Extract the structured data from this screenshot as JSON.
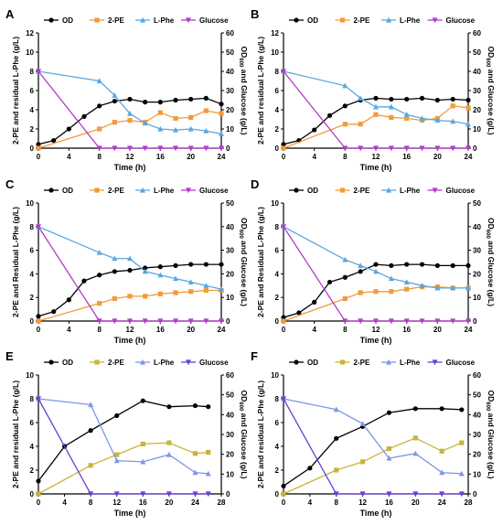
{
  "chart_data": [
    {
      "panel": "A",
      "type": "line",
      "xlabel": "Time (h)",
      "ylabel_left": "2-PE and residual L-Phe (g/L)",
      "ylabel_right": "OD600 and Glucose (g/L)",
      "xlim": [
        0,
        24
      ],
      "xticks": [
        0,
        4,
        8,
        12,
        16,
        20,
        24
      ],
      "ylim_left": [
        0,
        12
      ],
      "yticks_left": [
        0,
        2,
        4,
        6,
        8,
        10,
        12
      ],
      "ylim_right": [
        0,
        60
      ],
      "yticks_right": [
        0,
        10,
        20,
        30,
        40,
        50,
        60
      ],
      "legend": "top",
      "series": [
        {
          "name": "OD",
          "axis": "right",
          "color": "#000000",
          "marker": "circle",
          "x": [
            0,
            2,
            4,
            6,
            8,
            10,
            12,
            14,
            16,
            18,
            20,
            22,
            24
          ],
          "y": [
            2,
            4,
            10,
            16.5,
            22,
            24.5,
            25.5,
            24,
            24,
            25,
            25.5,
            26,
            23
          ]
        },
        {
          "name": "2-PE",
          "axis": "left",
          "color": "#f29a3c",
          "marker": "square",
          "x": [
            0,
            8,
            10,
            12,
            14,
            16,
            18,
            20,
            22,
            24
          ],
          "y": [
            0,
            2,
            2.7,
            2.9,
            2.7,
            3.7,
            3.1,
            3.2,
            3.9,
            3.6
          ]
        },
        {
          "name": "L-Phe",
          "axis": "left",
          "color": "#5aa7e0",
          "marker": "triangle",
          "x": [
            0,
            8,
            10,
            12,
            14,
            16,
            18,
            20,
            22,
            24
          ],
          "y": [
            8,
            7,
            5.5,
            3.6,
            2.6,
            2.0,
            1.9,
            2.0,
            1.8,
            1.5
          ]
        },
        {
          "name": "Glucose",
          "axis": "right",
          "color": "#b23acb",
          "marker": "triangle-down",
          "x": [
            0,
            8,
            10,
            12,
            14,
            16,
            18,
            20,
            22,
            24
          ],
          "y": [
            40,
            0,
            0,
            0,
            0,
            0,
            0,
            0,
            0,
            0
          ]
        }
      ]
    },
    {
      "panel": "B",
      "type": "line",
      "xlabel": "Time (h)",
      "ylabel_left": "2-PE and residual L-Phe (g/L)",
      "ylabel_right": "OD600 and Glucose (g/L)",
      "xlim": [
        0,
        24
      ],
      "xticks": [
        0,
        4,
        8,
        12,
        16,
        20,
        24
      ],
      "ylim_left": [
        0,
        12
      ],
      "yticks_left": [
        0,
        2,
        4,
        6,
        8,
        10,
        12
      ],
      "ylim_right": [
        0,
        60
      ],
      "yticks_right": [
        0,
        10,
        20,
        30,
        40,
        50,
        60
      ],
      "legend": "top",
      "series": [
        {
          "name": "OD",
          "axis": "right",
          "color": "#000000",
          "marker": "circle",
          "x": [
            0,
            2,
            4,
            6,
            8,
            10,
            12,
            14,
            16,
            18,
            20,
            22,
            24
          ],
          "y": [
            2,
            4,
            9.5,
            17,
            22,
            25,
            26,
            25.5,
            25.5,
            26,
            25,
            25.5,
            25
          ]
        },
        {
          "name": "2-PE",
          "axis": "left",
          "color": "#f29a3c",
          "marker": "square",
          "x": [
            0,
            8,
            10,
            12,
            14,
            16,
            18,
            20,
            22,
            24
          ],
          "y": [
            0,
            2.5,
            2.5,
            3.5,
            3.2,
            3.1,
            2.9,
            3.1,
            4.4,
            4.2
          ]
        },
        {
          "name": "L-Phe",
          "axis": "left",
          "color": "#5aa7e0",
          "marker": "triangle",
          "x": [
            0,
            8,
            10,
            12,
            14,
            16,
            18,
            20,
            22,
            24
          ],
          "y": [
            8,
            6.5,
            5.2,
            4.3,
            4.3,
            3.5,
            3.1,
            2.9,
            2.8,
            2.5
          ]
        },
        {
          "name": "Glucose",
          "axis": "right",
          "color": "#b23acb",
          "marker": "triangle-down",
          "x": [
            0,
            8,
            10,
            12,
            14,
            16,
            18,
            20,
            22,
            24
          ],
          "y": [
            40,
            0,
            0,
            0,
            0,
            0,
            0,
            0,
            0,
            0
          ]
        }
      ]
    },
    {
      "panel": "C",
      "type": "line",
      "xlabel": "Time (h)",
      "ylabel_left": "2-PE and Residual L-Phe (g/L)",
      "ylabel_right": "OD600 and Glucose (g/L)",
      "xlim": [
        0,
        24
      ],
      "xticks": [
        0,
        4,
        8,
        12,
        16,
        20,
        24
      ],
      "ylim_left": [
        0,
        10
      ],
      "yticks_left": [
        0,
        2,
        4,
        6,
        8,
        10
      ],
      "ylim_right": [
        0,
        50
      ],
      "yticks_right": [
        0,
        10,
        20,
        30,
        40,
        50
      ],
      "legend": "top",
      "series": [
        {
          "name": "OD",
          "axis": "right",
          "color": "#000000",
          "marker": "circle",
          "x": [
            0,
            2,
            4,
            6,
            8,
            10,
            12,
            14,
            16,
            18,
            20,
            22,
            24
          ],
          "y": [
            2,
            4,
            9,
            17,
            19.5,
            21,
            21.5,
            22.5,
            23,
            23.5,
            24,
            24,
            24
          ]
        },
        {
          "name": "2-PE",
          "axis": "left",
          "color": "#f29a3c",
          "marker": "square",
          "x": [
            0,
            8,
            10,
            12,
            14,
            16,
            18,
            20,
            22,
            24
          ],
          "y": [
            0,
            1.5,
            1.9,
            2.1,
            2.1,
            2.3,
            2.4,
            2.5,
            2.6,
            2.6
          ]
        },
        {
          "name": "L-Phe",
          "axis": "left",
          "color": "#5aa7e0",
          "marker": "triangle",
          "x": [
            0,
            8,
            10,
            12,
            14,
            16,
            18,
            20,
            22,
            24
          ],
          "y": [
            8,
            5.8,
            5.3,
            5.3,
            4.2,
            3.9,
            3.6,
            3.3,
            3.0,
            2.7
          ]
        },
        {
          "name": "Glucose",
          "axis": "right",
          "color": "#b23acb",
          "marker": "triangle-down",
          "x": [
            0,
            8,
            10,
            12,
            14,
            16,
            18,
            20,
            22,
            24
          ],
          "y": [
            40,
            0,
            0,
            0,
            0,
            0,
            0,
            0,
            0,
            0
          ]
        }
      ]
    },
    {
      "panel": "D",
      "type": "line",
      "xlabel": "Time (h)",
      "ylabel_left": "2-PE and Residual L-Phe (g/L)",
      "ylabel_right": "OD600 and Glucose (g/L)",
      "xlim": [
        0,
        24
      ],
      "xticks": [
        0,
        4,
        8,
        12,
        16,
        20,
        24
      ],
      "ylim_left": [
        0,
        10
      ],
      "yticks_left": [
        0,
        2,
        4,
        6,
        8,
        10
      ],
      "ylim_right": [
        0,
        50
      ],
      "yticks_right": [
        0,
        10,
        20,
        30,
        40,
        50
      ],
      "legend": "top",
      "series": [
        {
          "name": "OD",
          "axis": "right",
          "color": "#000000",
          "marker": "circle",
          "x": [
            0,
            2,
            4,
            6,
            8,
            10,
            12,
            14,
            16,
            18,
            20,
            22,
            24
          ],
          "y": [
            1.5,
            3.5,
            8,
            16.5,
            18.5,
            21,
            24,
            23.5,
            24,
            24,
            23.5,
            23.5,
            23.5
          ]
        },
        {
          "name": "2-PE",
          "axis": "left",
          "color": "#f29a3c",
          "marker": "square",
          "x": [
            0,
            8,
            10,
            12,
            14,
            16,
            18,
            20,
            22,
            24
          ],
          "y": [
            0,
            1.9,
            2.4,
            2.5,
            2.5,
            2.7,
            2.9,
            2.9,
            2.8,
            2.8
          ]
        },
        {
          "name": "L-Phe",
          "axis": "left",
          "color": "#5aa7e0",
          "marker": "triangle",
          "x": [
            0,
            8,
            10,
            12,
            14,
            16,
            18,
            20,
            22,
            24
          ],
          "y": [
            8,
            5.2,
            4.7,
            4.2,
            3.6,
            3.3,
            3.0,
            2.8,
            2.8,
            2.8
          ]
        },
        {
          "name": "Glucose",
          "axis": "right",
          "color": "#b23acb",
          "marker": "triangle-down",
          "x": [
            0,
            8,
            10,
            12,
            14,
            16,
            18,
            20,
            22,
            24
          ],
          "y": [
            40,
            0,
            0,
            0,
            0,
            0,
            0,
            0,
            0,
            0
          ]
        }
      ]
    },
    {
      "panel": "E",
      "type": "line",
      "xlabel": "Time (h)",
      "ylabel_left": "2-PE and residual L-Phe (g/L)",
      "ylabel_right": "OD600 and Glucose (g/L)",
      "xlim": [
        0,
        28
      ],
      "xticks": [
        0,
        4,
        8,
        12,
        16,
        20,
        24,
        28
      ],
      "ylim_left": [
        0,
        10
      ],
      "yticks_left": [
        0,
        2,
        4,
        6,
        8,
        10
      ],
      "ylim_right": [
        0,
        60
      ],
      "yticks_right": [
        0,
        10,
        20,
        30,
        40,
        50,
        60
      ],
      "legend": "top",
      "series": [
        {
          "name": "OD",
          "axis": "right",
          "color": "#000000",
          "marker": "circle",
          "x": [
            0,
            4,
            8,
            12,
            16,
            20,
            24,
            26
          ],
          "y": [
            6.5,
            24,
            32,
            39.5,
            47,
            44,
            44.5,
            44
          ]
        },
        {
          "name": "2-PE",
          "axis": "left",
          "color": "#c9b43a",
          "marker": "square",
          "x": [
            0,
            8,
            12,
            16,
            20,
            24,
            26
          ],
          "y": [
            0,
            2.4,
            3.3,
            4.2,
            4.3,
            3.4,
            3.5
          ]
        },
        {
          "name": "L-Phe",
          "axis": "left",
          "color": "#7e96e6",
          "marker": "triangle",
          "x": [
            0,
            8,
            12,
            16,
            20,
            24,
            26
          ],
          "y": [
            8,
            7.5,
            2.8,
            2.7,
            3.3,
            1.8,
            1.7
          ]
        },
        {
          "name": "Glucose",
          "axis": "right",
          "color": "#6b3fd6",
          "marker": "triangle-down",
          "x": [
            0,
            8,
            12,
            16,
            20,
            24,
            26
          ],
          "y": [
            48,
            0,
            0,
            0,
            0,
            0,
            0
          ]
        }
      ]
    },
    {
      "panel": "F",
      "type": "line",
      "xlabel": "Time (h)",
      "ylabel_left": "2-PE and residual L-Phe (g/L)",
      "ylabel_right": "OD600 and Glucose (g/L)",
      "xlim": [
        0,
        28
      ],
      "xticks": [
        0,
        4,
        8,
        12,
        16,
        20,
        24,
        28
      ],
      "ylim_left": [
        0,
        10
      ],
      "yticks_left": [
        0,
        2,
        4,
        6,
        8,
        10
      ],
      "ylim_right": [
        0,
        60
      ],
      "yticks_right": [
        0,
        10,
        20,
        30,
        40,
        50,
        60
      ],
      "legend": "top",
      "series": [
        {
          "name": "OD",
          "axis": "right",
          "color": "#000000",
          "marker": "circle",
          "x": [
            0,
            4,
            8,
            12,
            16,
            20,
            24,
            27
          ],
          "y": [
            4,
            13,
            28,
            34,
            41,
            43,
            43,
            42.5
          ]
        },
        {
          "name": "2-PE",
          "axis": "left",
          "color": "#c9b43a",
          "marker": "square",
          "x": [
            0,
            8,
            12,
            16,
            20,
            24,
            27
          ],
          "y": [
            0,
            2.0,
            2.7,
            3.8,
            4.7,
            3.6,
            4.3
          ]
        },
        {
          "name": "L-Phe",
          "axis": "left",
          "color": "#7e96e6",
          "marker": "triangle",
          "x": [
            0,
            8,
            12,
            16,
            20,
            24,
            27
          ],
          "y": [
            8,
            7.1,
            5.9,
            3.0,
            3.4,
            1.8,
            1.7
          ]
        },
        {
          "name": "Glucose",
          "axis": "right",
          "color": "#6b3fd6",
          "marker": "triangle-down",
          "x": [
            0,
            8,
            12,
            16,
            20,
            24,
            27
          ],
          "y": [
            48,
            0,
            0,
            0,
            0,
            0,
            0
          ]
        }
      ]
    }
  ]
}
